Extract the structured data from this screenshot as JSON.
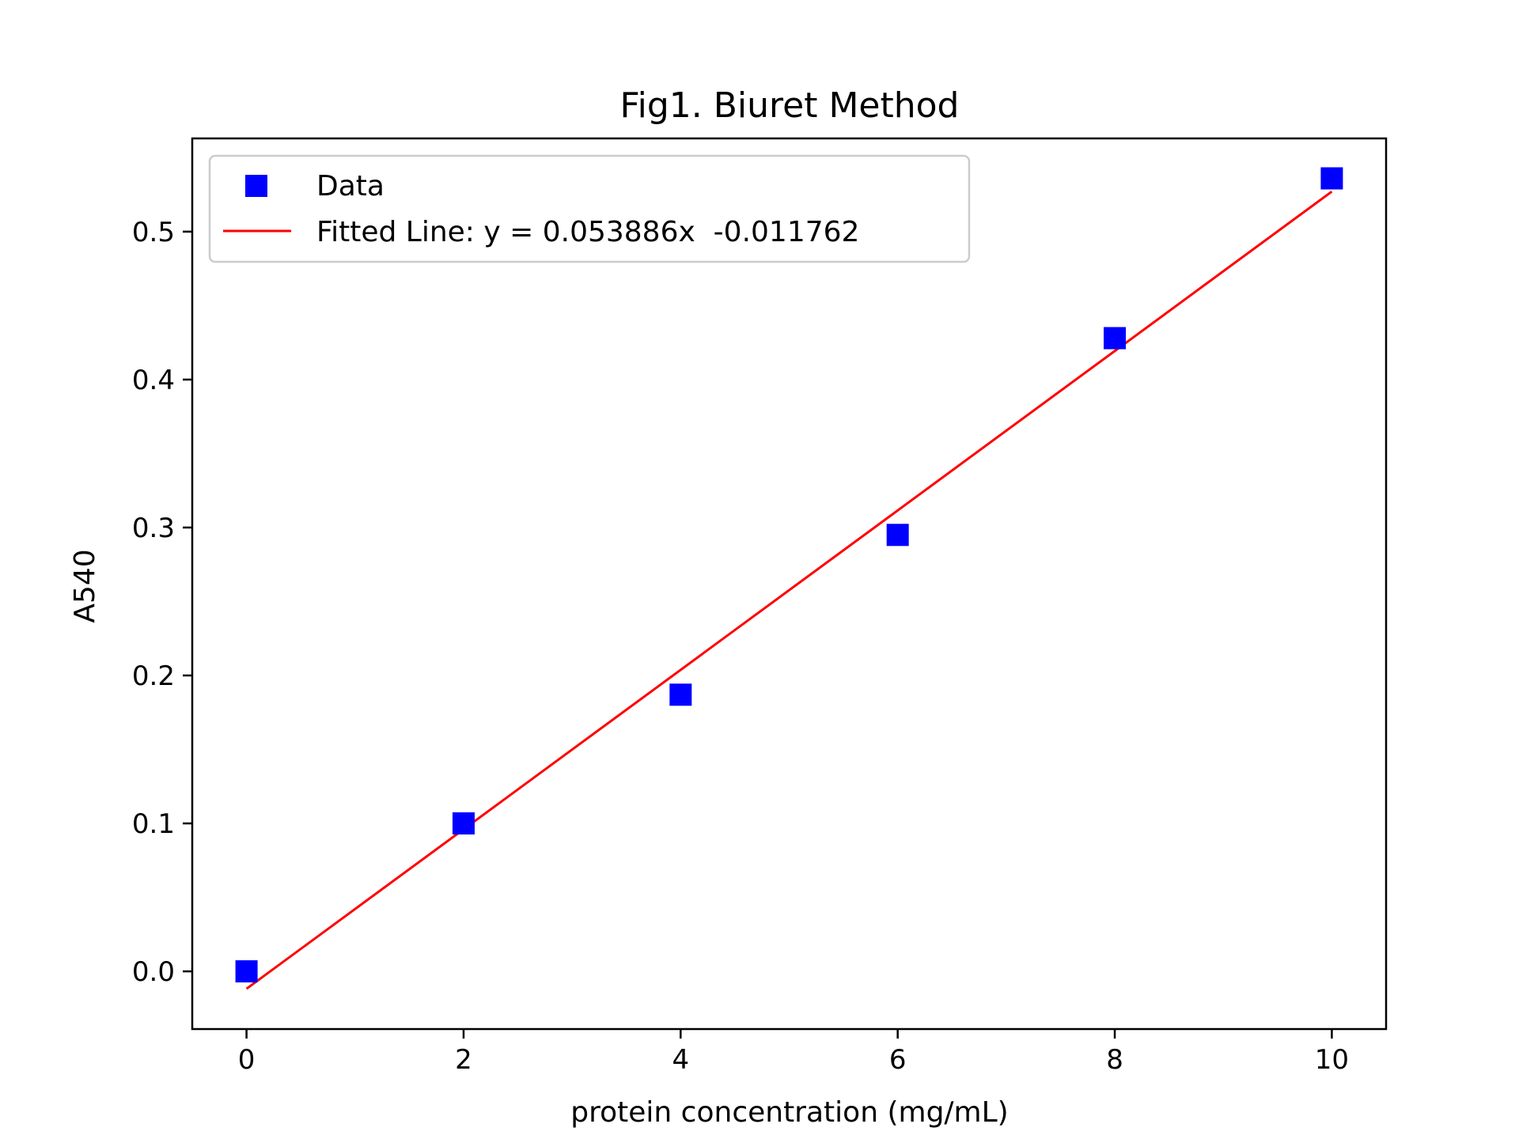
{
  "chart_data": {
    "type": "scatter",
    "title": "Fig1. Biuret Method",
    "xlabel": "protein concentration (mg/mL)",
    "ylabel": "A540",
    "xlim": [
      -0.5,
      10.5
    ],
    "ylim": [
      -0.039,
      0.563
    ],
    "xticks": [
      0,
      2,
      4,
      6,
      8,
      10
    ],
    "xtick_labels": [
      "0",
      "2",
      "4",
      "6",
      "8",
      "10"
    ],
    "yticks": [
      0.0,
      0.1,
      0.2,
      0.3,
      0.4,
      0.5
    ],
    "ytick_labels": [
      "0.0",
      "0.1",
      "0.2",
      "0.3",
      "0.4",
      "0.5"
    ],
    "grid": false,
    "legend_position": "upper-left",
    "series": [
      {
        "name": "Data",
        "kind": "scatter",
        "marker": "square",
        "color": "#0000ff",
        "x": [
          0,
          2,
          4,
          6,
          8,
          10
        ],
        "y": [
          0.0,
          0.1,
          0.187,
          0.295,
          0.428,
          0.536
        ]
      },
      {
        "name": "Fitted Line: y = 0.053886x  -0.011762",
        "kind": "line",
        "color": "#ff0000",
        "slope": 0.053886,
        "intercept": -0.011762,
        "x_range": [
          0,
          10
        ]
      }
    ]
  }
}
